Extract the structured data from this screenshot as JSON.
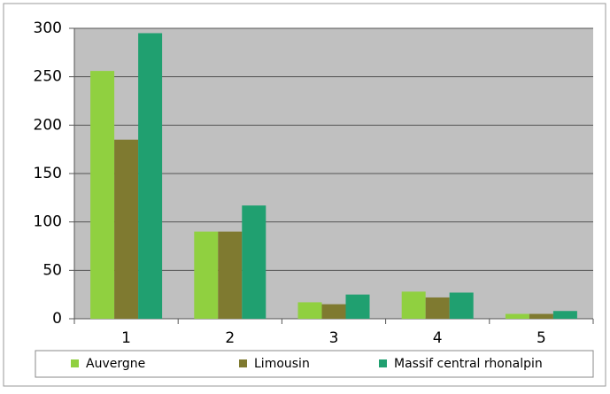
{
  "chart_data": {
    "type": "bar",
    "categories": [
      "1",
      "2",
      "3",
      "4",
      "5"
    ],
    "series": [
      {
        "name": "Auvergne",
        "color": "#90d040",
        "values": [
          256,
          90,
          17,
          28,
          5
        ]
      },
      {
        "name": "Limousin",
        "color": "#7f7a30",
        "values": [
          185,
          90,
          15,
          22,
          5
        ]
      },
      {
        "name": "Massif central rhonalpin",
        "color": "#20a070",
        "values": [
          295,
          117,
          25,
          27,
          8
        ]
      }
    ],
    "ylim": [
      0,
      300
    ],
    "yticks": [
      0,
      50,
      100,
      150,
      200,
      250,
      300
    ],
    "grid": true,
    "legend": "bottom"
  }
}
